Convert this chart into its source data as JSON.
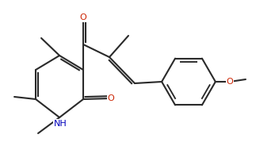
{
  "bg": "#ffffff",
  "lc": "#2a2a2a",
  "oc": "#cc2200",
  "nc": "#0000bb",
  "lw": 1.5,
  "fs": 8.0,
  "figsize": [
    3.23,
    1.84
  ],
  "dpi": 100,
  "xlim": [
    0,
    10.0
  ],
  "ylim": [
    0,
    5.7
  ]
}
